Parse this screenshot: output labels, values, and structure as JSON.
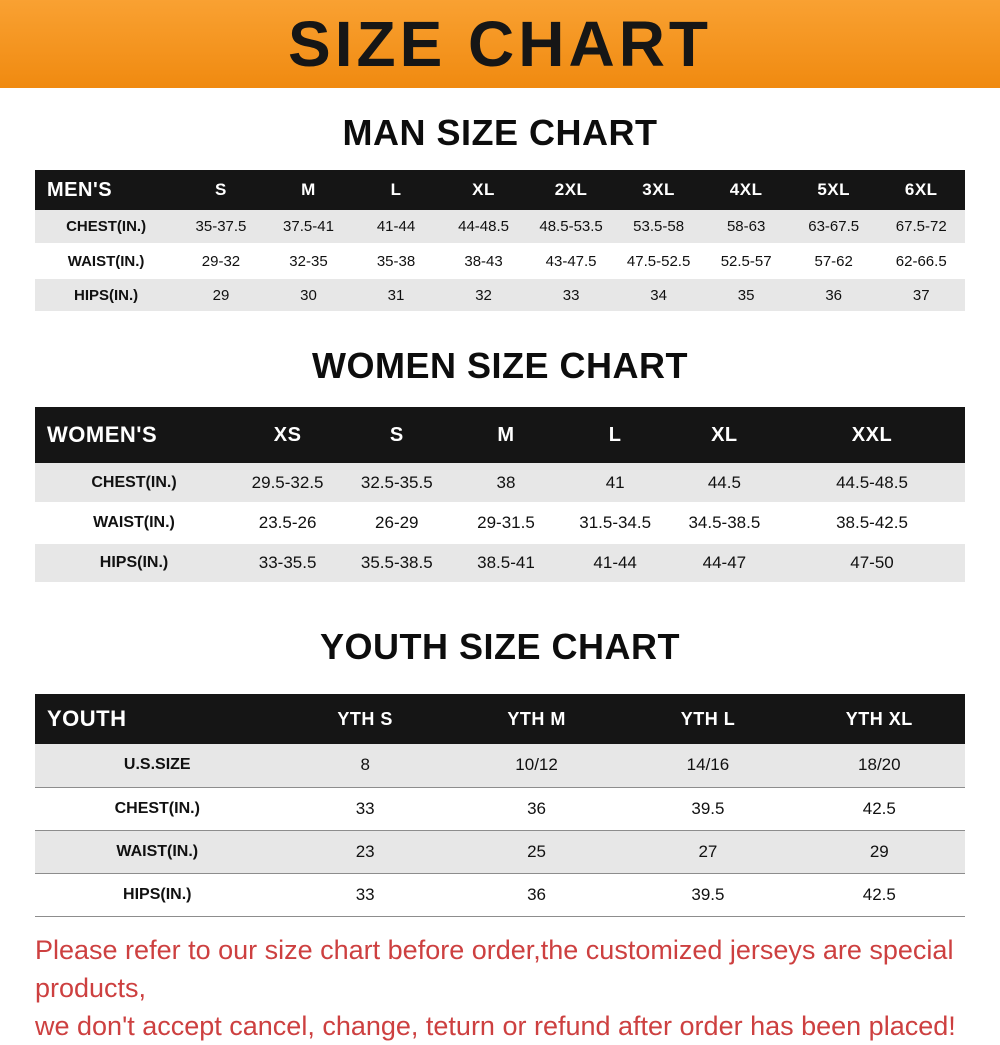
{
  "banner": {
    "title": "SIZE CHART"
  },
  "colors": {
    "banner_orange_light": "#f9a132",
    "banner_orange_dark": "#f08a10",
    "header_bg": "#151515",
    "row_gray": "#e7e7e7",
    "heading_black": "#0d0d0d",
    "note_red": "#cd4040"
  },
  "note": {
    "line1": "Please refer to our size chart before order,the customized jerseys are special products,",
    "line2": "we don't accept cancel, change, teturn or refund after order has been placed!"
  },
  "chart_data": [
    {
      "type": "table",
      "title": "MAN SIZE CHART",
      "label": "MEN'S",
      "columns": [
        "S",
        "M",
        "L",
        "XL",
        "2XL",
        "3XL",
        "4XL",
        "5XL",
        "6XL"
      ],
      "rows": [
        {
          "label": "CHEST(IN.)",
          "values": [
            "35-37.5",
            "37.5-41",
            "41-44",
            "44-48.5",
            "48.5-53.5",
            "53.5-58",
            "58-63",
            "63-67.5",
            "67.5-72"
          ]
        },
        {
          "label": "WAIST(IN.)",
          "values": [
            "29-32",
            "32-35",
            "35-38",
            "38-43",
            "43-47.5",
            "47.5-52.5",
            "52.5-57",
            "57-62",
            "62-66.5"
          ]
        },
        {
          "label": "HIPS(IN.)",
          "values": [
            "29",
            "30",
            "31",
            "32",
            "33",
            "34",
            "35",
            "36",
            "37"
          ]
        }
      ]
    },
    {
      "type": "table",
      "title": "WOMEN SIZE CHART",
      "label": "WOMEN'S",
      "columns": [
        "XS",
        "S",
        "M",
        "L",
        "XL",
        "XXL"
      ],
      "rows": [
        {
          "label": "CHEST(IN.)",
          "values": [
            "29.5-32.5",
            "32.5-35.5",
            "38",
            "41",
            "44.5",
            "44.5-48.5"
          ]
        },
        {
          "label": "WAIST(IN.)",
          "values": [
            "23.5-26",
            "26-29",
            "29-31.5",
            "31.5-34.5",
            "34.5-38.5",
            "38.5-42.5"
          ]
        },
        {
          "label": "HIPS(IN.)",
          "values": [
            "33-35.5",
            "35.5-38.5",
            "38.5-41",
            "41-44",
            "44-47",
            "47-50"
          ]
        }
      ]
    },
    {
      "type": "table",
      "title": "YOUTH SIZE CHART",
      "label": "YOUTH",
      "columns": [
        "YTH S",
        "YTH M",
        "YTH L",
        "YTH XL"
      ],
      "rows": [
        {
          "label": "U.S.SIZE",
          "values": [
            "8",
            "10/12",
            "14/16",
            "18/20"
          ]
        },
        {
          "label": "CHEST(IN.)",
          "values": [
            "33",
            "36",
            "39.5",
            "42.5"
          ]
        },
        {
          "label": "WAIST(IN.)",
          "values": [
            "23",
            "25",
            "27",
            "29"
          ]
        },
        {
          "label": "HIPS(IN.)",
          "values": [
            "33",
            "36",
            "39.5",
            "42.5"
          ]
        }
      ]
    }
  ]
}
